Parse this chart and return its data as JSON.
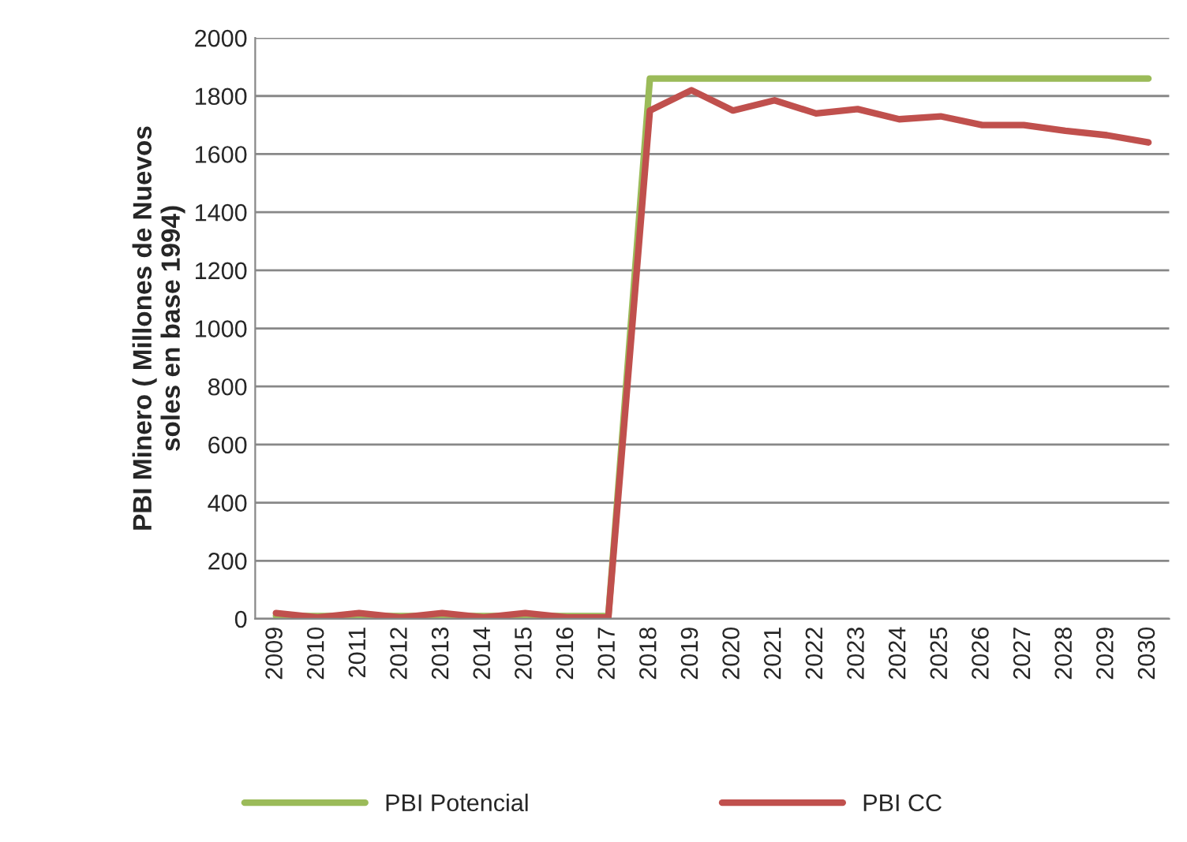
{
  "chart_data": {
    "type": "line",
    "categories": [
      "2009",
      "2010",
      "2011",
      "2012",
      "2013",
      "2014",
      "2015",
      "2016",
      "2017",
      "2018",
      "2019",
      "2020",
      "2021",
      "2022",
      "2023",
      "2024",
      "2025",
      "2026",
      "2027",
      "2028",
      "2029",
      "2030"
    ],
    "ylabel": "PBI Minero ( Millones de Nuevos\nsoles en base 1994)",
    "ylim": [
      0,
      2000
    ],
    "yticks": [
      0,
      200,
      400,
      600,
      800,
      1000,
      1200,
      1400,
      1600,
      1800,
      2000
    ],
    "grid": "y",
    "legend": "bottom",
    "marker": "none",
    "line_style": "solid",
    "series": [
      {
        "name": "PBI Potencial",
        "color": "#9bbb59",
        "values": [
          10,
          10,
          10,
          10,
          10,
          10,
          10,
          10,
          10,
          1860,
          1860,
          1860,
          1860,
          1860,
          1860,
          1860,
          1860,
          1860,
          1860,
          1860,
          1860,
          1860
        ]
      },
      {
        "name": "PBI CC",
        "color": "#c0504d",
        "values": [
          20,
          5,
          20,
          5,
          20,
          5,
          20,
          5,
          5,
          1750,
          1820,
          1750,
          1785,
          1740,
          1755,
          1720,
          1730,
          1700,
          1700,
          1680,
          1665,
          1640
        ]
      }
    ]
  }
}
